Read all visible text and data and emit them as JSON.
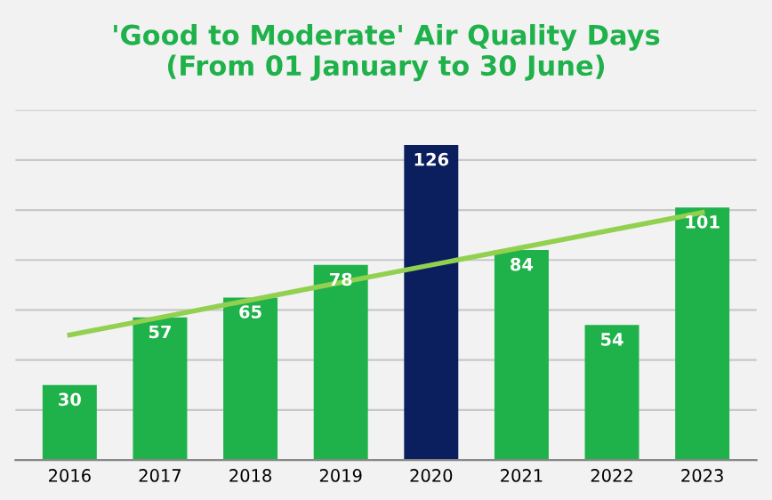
{
  "chart_data": {
    "type": "bar",
    "title": "'Good to Moderate' Air Quality Days\n(From 01 January to 30 June)",
    "categories": [
      "2016",
      "2017",
      "2018",
      "2019",
      "2020",
      "2021",
      "2022",
      "2023"
    ],
    "series": [
      {
        "colors": [
          "#1fb14a",
          "#1fb14a",
          "#1fb14a",
          "#1fb14a",
          "#0b1f5e",
          "#1fb14a",
          "#1fb14a",
          "#1fb14a"
        ],
        "values": [
          30,
          57,
          65,
          78,
          126,
          84,
          54,
          101
        ],
        "value_labels": [
          "30",
          "57",
          "65",
          "78",
          "126",
          "84",
          "54",
          "101"
        ]
      },
      {
        "type": "line",
        "color": "#92d050",
        "values": [
          50,
          57,
          64,
          71,
          78,
          85,
          92,
          99
        ]
      }
    ],
    "ylim": [
      0,
      140
    ],
    "yticks": [
      {
        "value": 0,
        "label": null
      },
      {
        "value": 20,
        "label": null
      },
      {
        "value": 40,
        "label": null
      },
      {
        "value": 60,
        "label": null
      },
      {
        "value": 80,
        "label": null
      },
      {
        "value": 100,
        "label": null
      },
      {
        "value": 120,
        "label": null
      },
      {
        "value": 140,
        "label": null
      }
    ],
    "tick_labels": "x",
    "grid": "y"
  }
}
